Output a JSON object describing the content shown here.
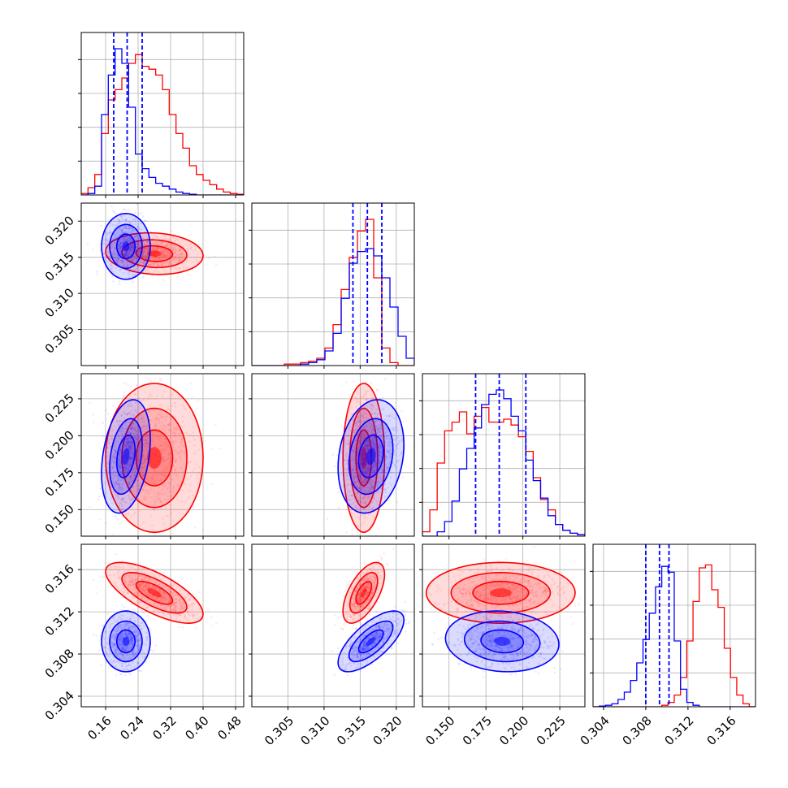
{
  "chart_data": {
    "type": "corner",
    "grid": true,
    "parameters": [
      {
        "ticks": [
          0.16,
          0.24,
          0.32,
          0.4,
          0.48
        ],
        "tick_labels": [
          "0.16",
          "0.24",
          "0.32",
          "0.40",
          "0.48"
        ],
        "range": [
          0.1,
          0.5
        ]
      },
      {
        "ticks": [
          0.305,
          0.31,
          0.315,
          0.32
        ],
        "tick_labels": [
          "0.305",
          "0.310",
          "0.315",
          "0.320"
        ],
        "range": [
          0.3,
          0.3225
        ]
      },
      {
        "ticks": [
          0.15,
          0.175,
          0.2,
          0.225
        ],
        "tick_labels": [
          "0.150",
          "0.175",
          "0.200",
          "0.225"
        ],
        "range": [
          0.132,
          0.242
        ]
      },
      {
        "ticks": [
          0.304,
          0.308,
          0.312,
          0.316
        ],
        "tick_labels": [
          "0.304",
          "0.308",
          "0.312",
          "0.316"
        ],
        "range": [
          0.303,
          0.3184
        ]
      }
    ],
    "series": [
      {
        "color": "#ff0000",
        "means": [
          0.28,
          0.3155,
          0.185,
          0.3138
        ],
        "sds": [
          0.05,
          0.0012,
          0.021,
          0.0012
        ],
        "correlations": {
          "1_0": -0.1,
          "2_0": 0.0,
          "2_1": 0.0,
          "3_0": -0.7,
          "3_1": 0.6,
          "3_2": 0.0
        },
        "histograms": [
          [
            0.01,
            0.05,
            0.14,
            0.42,
            0.65,
            0.72,
            0.8,
            0.9,
            0.96,
            0.88,
            0.86,
            0.82,
            0.72,
            0.55,
            0.42,
            0.32,
            0.2,
            0.14,
            0.1,
            0.07,
            0.04,
            0.02,
            0.01,
            0.005
          ],
          [
            0.0,
            0.0,
            0.0,
            0.0,
            0.01,
            0.01,
            0.02,
            0.03,
            0.05,
            0.12,
            0.28,
            0.52,
            0.74,
            0.92,
            1.0,
            0.6,
            0.12,
            0.02,
            0.0,
            0.0
          ],
          [
            0.03,
            0.18,
            0.5,
            0.72,
            0.78,
            0.85,
            0.7,
            0.82,
            0.88,
            0.78,
            0.78,
            0.8,
            0.76,
            0.68,
            0.58,
            0.4,
            0.25,
            0.18,
            0.08,
            0.04,
            0.02,
            0.01
          ],
          [
            0.0,
            0.0,
            0.0,
            0.0,
            0.0,
            0.0,
            0.0,
            0.0,
            0.0,
            0.0,
            0.0,
            0.01,
            0.03,
            0.08,
            0.2,
            0.45,
            0.72,
            0.95,
            0.97,
            0.8,
            0.68,
            0.4,
            0.2,
            0.08,
            0.02,
            0.0
          ]
        ]
      },
      {
        "color": "#0000ff",
        "means": [
          0.21,
          0.3165,
          0.186,
          0.3092
        ],
        "sds": [
          0.025,
          0.0019,
          0.016,
          0.0012
        ],
        "correlations": {
          "1_0": 0.0,
          "2_0": 0.3,
          "2_1": 0.2,
          "3_0": 0.0,
          "3_1": 0.7,
          "3_2": -0.1
        },
        "quantile_lines": [
          [
            0.18,
            0.213,
            0.25
          ],
          [
            0.314,
            0.316,
            0.318
          ],
          [
            0.168,
            0.184,
            0.202
          ],
          [
            0.308,
            0.3093,
            0.3102
          ]
        ],
        "histograms": [
          [
            0.0,
            0.01,
            0.06,
            0.55,
            0.82,
            1.0,
            0.9,
            0.6,
            0.28,
            0.18,
            0.12,
            0.08,
            0.06,
            0.04,
            0.02,
            0.01,
            0.005,
            0.0,
            0.0,
            0.0,
            0.0,
            0.0,
            0.0,
            0.0
          ],
          [
            0.0,
            0.0,
            0.0,
            0.0,
            0.0,
            0.0,
            0.01,
            0.02,
            0.04,
            0.1,
            0.22,
            0.46,
            0.7,
            0.78,
            0.8,
            0.75,
            0.6,
            0.4,
            0.2,
            0.05
          ],
          [
            0.0,
            0.0,
            0.03,
            0.1,
            0.24,
            0.46,
            0.6,
            0.74,
            0.9,
            0.97,
            1.0,
            0.94,
            0.82,
            0.72,
            0.52,
            0.38,
            0.26,
            0.14,
            0.08,
            0.04,
            0.02,
            0.01
          ],
          [
            0.0,
            0.005,
            0.01,
            0.02,
            0.05,
            0.1,
            0.18,
            0.3,
            0.46,
            0.64,
            0.82,
            0.96,
            0.92,
            0.45,
            0.12,
            0.03,
            0.01,
            0.0,
            0.0,
            0.0,
            0.0,
            0.0,
            0.0,
            0.0,
            0.0,
            0.0
          ]
        ]
      }
    ]
  }
}
